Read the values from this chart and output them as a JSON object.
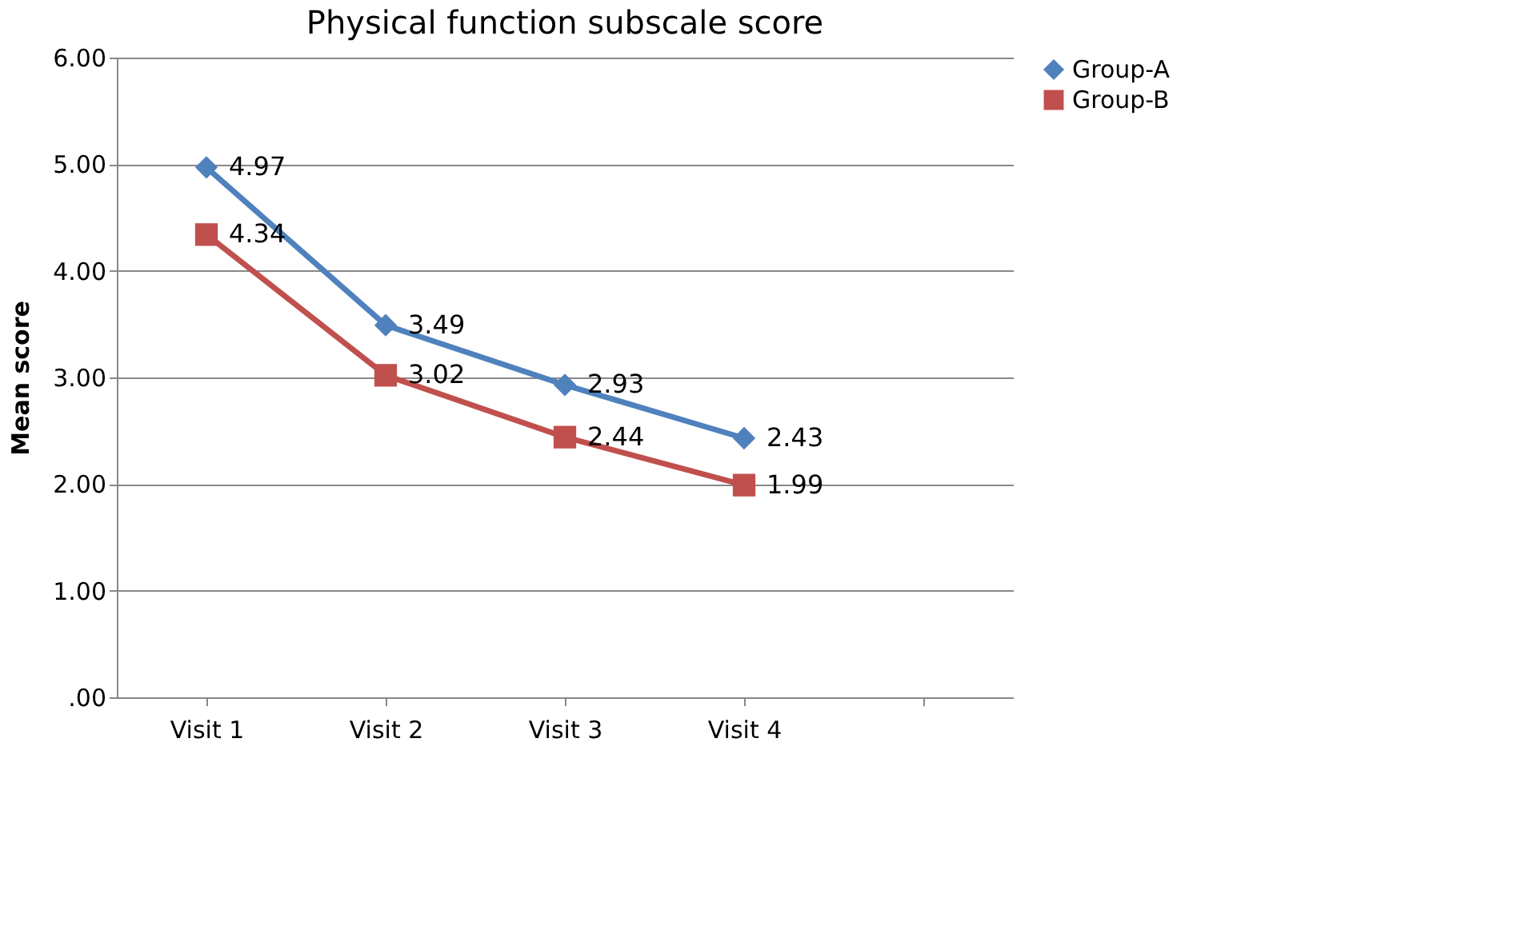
{
  "chart_data": {
    "type": "line",
    "title": "Physical function  subscale score",
    "ylabel": "Mean score",
    "categories": [
      "Visit 1",
      "Visit 2",
      "Visit 3",
      "Visit 4",
      null
    ],
    "series": [
      {
        "name": "Group-A",
        "color": "#4f81bd",
        "marker": "diamond",
        "values": [
          4.97,
          3.49,
          2.93,
          2.43,
          null
        ]
      },
      {
        "name": "Group-B",
        "color": "#c0504d",
        "marker": "square",
        "values": [
          4.34,
          3.02,
          2.44,
          1.99,
          null
        ]
      }
    ],
    "ylim": [
      0,
      6
    ],
    "yticks": [
      {
        "value": 0,
        "label": ".00"
      },
      {
        "value": 1,
        "label": "1.00"
      },
      {
        "value": 2,
        "label": "2.00"
      },
      {
        "value": 3,
        "label": "3.00"
      },
      {
        "value": 4,
        "label": "4.00"
      },
      {
        "value": 5,
        "label": "5.00"
      },
      {
        "value": 6,
        "label": "6.00"
      }
    ],
    "grid": "y",
    "legend": "right",
    "data_labels": true,
    "line_style": "solid"
  }
}
